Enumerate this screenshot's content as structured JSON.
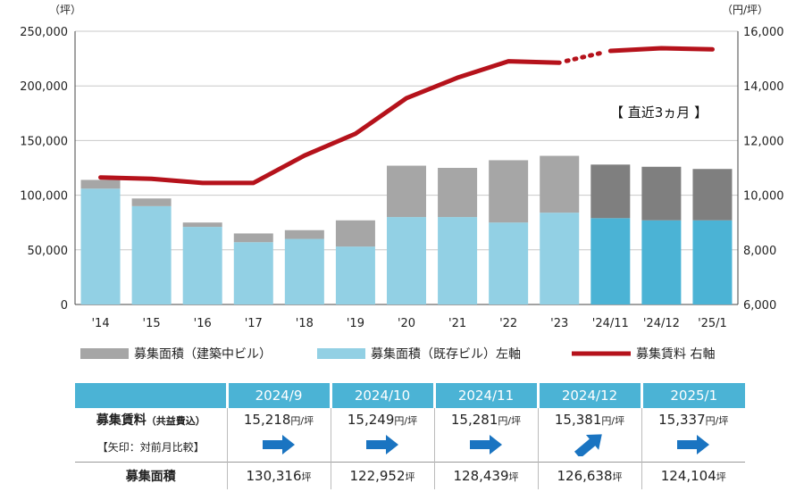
{
  "chart_data": {
    "type": "bar+line",
    "categories": [
      "'14",
      "'15",
      "'16",
      "'17",
      "'18",
      "'19",
      "'20",
      "'21",
      "'22",
      "'23",
      "'24/11",
      "'24/12",
      "'25/1"
    ],
    "left_axis": {
      "unit": "（坪）",
      "ticks": [
        "250,000",
        "200,000",
        "150,000",
        "100,000",
        "50,000",
        "0"
      ],
      "range": [
        0,
        250000
      ]
    },
    "right_axis": {
      "unit": "（円/坪）",
      "ticks": [
        "16,000",
        "14,000",
        "12,000",
        "10,000",
        "8,000",
        "6,000"
      ],
      "range": [
        6000,
        16000
      ]
    },
    "series": [
      {
        "name": "募集面積（既存ビル）左軸",
        "type": "bar",
        "color": "#92d0e4",
        "recent_color": "#4bb3d5",
        "values": [
          106000,
          90000,
          71000,
          57000,
          60000,
          53000,
          80000,
          80000,
          75000,
          84000,
          79000,
          77000,
          77000
        ]
      },
      {
        "name": "募集面積（建築中ビル）",
        "type": "bar-stack",
        "color": "#a6a6a6",
        "recent_color": "#7f7f7f",
        "values": [
          8000,
          7000,
          4000,
          8000,
          8000,
          24000,
          47000,
          45000,
          57000,
          52000,
          49000,
          49000,
          47000
        ]
      },
      {
        "name": "募集賃料 右軸",
        "type": "line",
        "color": "#b5121b",
        "values": [
          10650,
          10600,
          10450,
          10450,
          11450,
          12250,
          13550,
          14300,
          14900,
          14850,
          15281,
          15381,
          15337
        ]
      }
    ],
    "annotation": "【 直近3ヵ月 】",
    "recent_count": 3
  },
  "table": {
    "headers": [
      "2024/9",
      "2024/10",
      "2024/11",
      "2024/12",
      "2025/1"
    ],
    "rent_label": "募集賃料",
    "rent_label_note": "（共益費込）",
    "rent": [
      "15,218",
      "15,249",
      "15,281",
      "15,381",
      "15,337"
    ],
    "rent_unit": "円/坪",
    "arrow_label": "【矢印：対前月比較】",
    "arrows": [
      "flat",
      "flat",
      "flat",
      "up",
      "flat"
    ],
    "area_label": "募集面積",
    "area": [
      "130,316",
      "122,952",
      "128,439",
      "126,638",
      "124,104"
    ],
    "area_unit": "坪",
    "arrow_color": "#1a74c1"
  }
}
